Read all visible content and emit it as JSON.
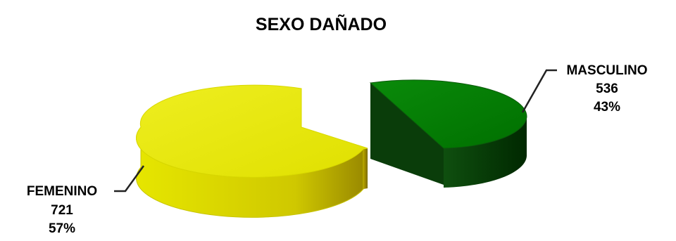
{
  "chart_data": {
    "type": "pie",
    "title": "SEXO DAÑADO",
    "slices": [
      {
        "label": "MASCULINO",
        "value": 536,
        "percent": "43%",
        "color": "#008000"
      },
      {
        "label": "FEMENINO",
        "value": 721,
        "percent": "57%",
        "color": "#e5e600"
      }
    ],
    "style": "3d-exploded",
    "legend": "none",
    "data_labels": "callout"
  }
}
